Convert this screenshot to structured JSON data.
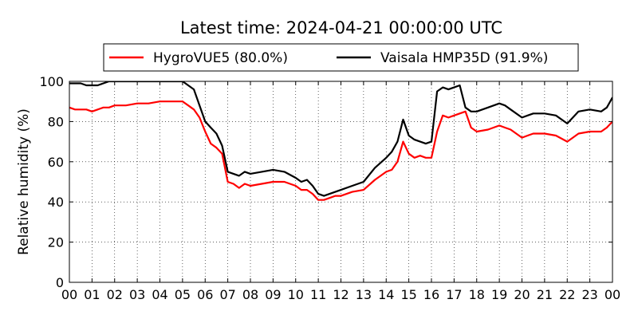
{
  "chart_data": {
    "type": "line",
    "title": "Latest time: 2024-04-21 00:00:00 UTC",
    "xlabel": "",
    "ylabel": "Relative humidity (%)",
    "xlim": [
      0,
      24
    ],
    "ylim": [
      0,
      100
    ],
    "x_ticks": [
      0,
      1,
      2,
      3,
      4,
      5,
      6,
      7,
      8,
      9,
      10,
      11,
      12,
      13,
      14,
      15,
      16,
      17,
      18,
      19,
      20,
      21,
      22,
      23,
      24
    ],
    "x_tick_labels": [
      "00",
      "01",
      "02",
      "03",
      "04",
      "05",
      "06",
      "07",
      "08",
      "09",
      "10",
      "11",
      "12",
      "13",
      "14",
      "15",
      "16",
      "17",
      "18",
      "19",
      "20",
      "21",
      "22",
      "23",
      "00"
    ],
    "y_ticks": [
      0,
      20,
      40,
      60,
      80,
      100
    ],
    "y_tick_labels": [
      "0",
      "20",
      "40",
      "60",
      "80",
      "100"
    ],
    "grid": true,
    "legend_position": "top",
    "series": [
      {
        "name": "HygroVUE5 (80.0%)",
        "color": "#ff0000",
        "x": [
          0,
          0.25,
          0.5,
          0.75,
          1,
          1.25,
          1.5,
          1.75,
          2,
          2.5,
          3,
          3.5,
          4,
          4.5,
          5,
          5.25,
          5.5,
          5.75,
          6,
          6.25,
          6.5,
          6.75,
          7,
          7.25,
          7.5,
          7.75,
          8,
          8.5,
          9,
          9.5,
          10,
          10.25,
          10.5,
          10.75,
          11,
          11.25,
          11.5,
          11.75,
          12,
          12.5,
          13,
          13.5,
          14,
          14.25,
          14.5,
          14.75,
          15,
          15.25,
          15.5,
          15.75,
          16,
          16.25,
          16.5,
          16.75,
          17,
          17.25,
          17.5,
          17.75,
          18,
          18.5,
          19,
          19.25,
          19.5,
          20,
          20.25,
          20.5,
          21,
          21.5,
          22,
          22.25,
          22.5,
          23,
          23.5,
          23.75,
          24
        ],
        "values": [
          87,
          86,
          86,
          86,
          85,
          86,
          87,
          87,
          88,
          88,
          89,
          89,
          90,
          90,
          90,
          88,
          86,
          82,
          75,
          69,
          67,
          64,
          50,
          49,
          47,
          49,
          48,
          49,
          50,
          50,
          48,
          46,
          46,
          44,
          41,
          41,
          42,
          43,
          43,
          45,
          46,
          51,
          55,
          56,
          60,
          70,
          64,
          62,
          63,
          62,
          62,
          75,
          83,
          82,
          83,
          84,
          85,
          77,
          75,
          76,
          78,
          77,
          76,
          72,
          73,
          74,
          74,
          73,
          70,
          72,
          74,
          75,
          75,
          77,
          80
        ]
      },
      {
        "name": "Vaisala HMP35D (91.9%)",
        "color": "#000000",
        "x": [
          0,
          0.25,
          0.5,
          0.75,
          1,
          1.25,
          1.5,
          1.75,
          2,
          2.5,
          3,
          3.5,
          4,
          4.5,
          5,
          5.25,
          5.5,
          5.75,
          6,
          6.25,
          6.5,
          6.75,
          7,
          7.25,
          7.5,
          7.75,
          8,
          8.5,
          9,
          9.5,
          10,
          10.25,
          10.5,
          10.75,
          11,
          11.25,
          11.5,
          11.75,
          12,
          12.5,
          13,
          13.5,
          14,
          14.25,
          14.5,
          14.75,
          15,
          15.25,
          15.5,
          15.75,
          16,
          16.25,
          16.5,
          16.75,
          17,
          17.25,
          17.5,
          17.75,
          18,
          18.5,
          19,
          19.25,
          19.5,
          20,
          20.25,
          20.5,
          21,
          21.5,
          22,
          22.25,
          22.5,
          23,
          23.5,
          23.75,
          24
        ],
        "values": [
          99,
          99,
          99,
          98,
          98,
          98,
          99,
          100,
          100,
          100,
          100,
          100,
          100,
          100,
          100,
          98,
          96,
          88,
          80,
          77,
          74,
          68,
          55,
          54,
          53,
          55,
          54,
          55,
          56,
          55,
          52,
          50,
          51,
          48,
          44,
          43,
          44,
          45,
          46,
          48,
          50,
          57,
          62,
          65,
          70,
          81,
          73,
          71,
          70,
          69,
          70,
          95,
          97,
          96,
          97,
          98,
          87,
          85,
          85,
          87,
          89,
          88,
          86,
          82,
          83,
          84,
          84,
          83,
          79,
          82,
          85,
          86,
          85,
          87,
          92
        ]
      }
    ]
  }
}
